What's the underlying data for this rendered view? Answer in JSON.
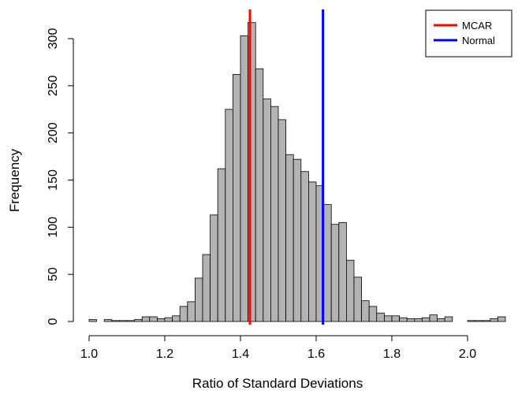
{
  "chart_data": {
    "type": "bar",
    "subtype": "histogram",
    "title": "",
    "xlabel": "Ratio of Standard Deviations",
    "ylabel": "Frequency",
    "xlim": [
      1.0,
      2.1
    ],
    "ylim": [
      0,
      300
    ],
    "x_ticks": [
      1.0,
      1.2,
      1.4,
      1.6,
      1.8,
      2.0
    ],
    "x_tick_labels": [
      "1.0",
      "1.2",
      "1.4",
      "1.6",
      "1.8",
      "2.0"
    ],
    "y_ticks": [
      0,
      50,
      100,
      150,
      200,
      250,
      300
    ],
    "y_tick_labels": [
      "0",
      "50",
      "100",
      "150",
      "200",
      "250",
      "300"
    ],
    "bin_width": 0.02,
    "bin_starts": [
      1.0,
      1.02,
      1.04,
      1.06,
      1.08,
      1.1,
      1.12,
      1.14,
      1.16,
      1.18,
      1.2,
      1.22,
      1.24,
      1.26,
      1.28,
      1.3,
      1.32,
      1.34,
      1.36,
      1.38,
      1.4,
      1.42,
      1.44,
      1.46,
      1.48,
      1.5,
      1.52,
      1.54,
      1.56,
      1.58,
      1.6,
      1.62,
      1.64,
      1.66,
      1.68,
      1.7,
      1.72,
      1.74,
      1.76,
      1.78,
      1.8,
      1.82,
      1.84,
      1.86,
      1.88,
      1.9,
      1.92,
      1.94,
      1.96,
      1.98,
      2.0,
      2.02,
      2.04,
      2.06,
      2.08
    ],
    "counts": [
      2,
      0,
      2,
      1,
      1,
      1,
      2,
      5,
      5,
      3,
      4,
      6,
      16,
      21,
      46,
      71,
      113,
      162,
      225,
      262,
      303,
      317,
      268,
      236,
      228,
      214,
      177,
      172,
      159,
      148,
      144,
      124,
      103,
      105,
      65,
      47,
      22,
      16,
      9,
      6,
      6,
      4,
      3,
      3,
      4,
      7,
      3,
      5,
      0,
      0,
      1,
      1,
      1,
      3,
      5
    ],
    "bar_fill": "#b3b3b3",
    "bar_stroke": "#000000",
    "vlines": [
      {
        "name": "MCAR",
        "x": 1.425,
        "color": "#ff0000"
      },
      {
        "name": "Normal",
        "x": 1.618,
        "color": "#0000ff"
      }
    ],
    "legend": {
      "position": "top-right",
      "entries": [
        "MCAR",
        "Normal"
      ]
    },
    "grid": false
  }
}
